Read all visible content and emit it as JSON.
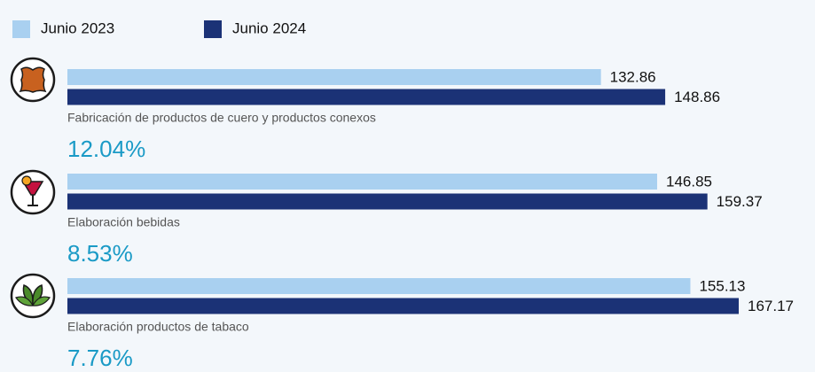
{
  "chart_data": {
    "type": "bar",
    "orientation": "horizontal",
    "categories": [
      "Fabricación de productos de cuero y productos conexos",
      "Elaboración bebidas",
      "Elaboración productos de tabaco"
    ],
    "series": [
      {
        "name": "Junio 2023",
        "color": "#a9d0f0",
        "values": [
          132.86,
          146.85,
          155.13
        ]
      },
      {
        "name": "Junio 2024",
        "color": "#1b3276",
        "values": [
          148.86,
          159.37,
          167.17
        ]
      }
    ],
    "changes": [
      "12.04%",
      "8.53%",
      "7.76%"
    ],
    "legend": "top-left"
  }
}
